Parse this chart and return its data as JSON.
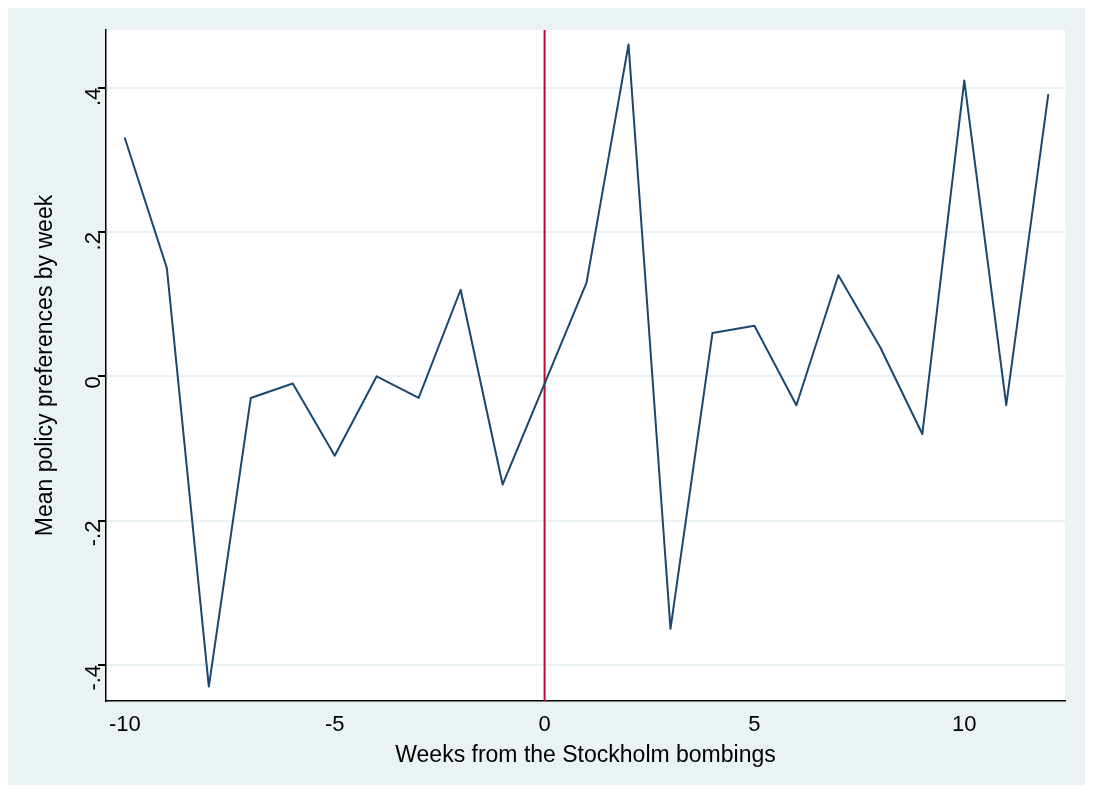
{
  "chart_data": {
    "type": "line",
    "xlabel": "Weeks from the Stockholm bombings",
    "ylabel": "Mean policy preferences by week",
    "x": [
      -10,
      -9,
      -8,
      -7,
      -6,
      -5,
      -4,
      -3,
      -2,
      -1,
      0,
      1,
      2,
      3,
      4,
      5,
      6,
      7,
      8,
      9,
      10,
      11,
      12
    ],
    "series": [
      {
        "color": "#1a476f",
        "values": [
          0.33,
          0.15,
          -0.43,
          -0.03,
          -0.01,
          -0.11,
          0.0,
          -0.03,
          0.12,
          -0.15,
          -0.01,
          0.13,
          0.46,
          -0.35,
          0.06,
          0.07,
          -0.04,
          0.14,
          0.04,
          -0.08,
          0.41,
          -0.04,
          0.39
        ]
      }
    ],
    "xlim": [
      -10.45,
      12.4
    ],
    "xticks": [
      -10,
      -5,
      0,
      5,
      10
    ],
    "ylim": [
      -0.45,
      0.48
    ],
    "yticks": [
      {
        "value": -0.4,
        "label": "-.4"
      },
      {
        "value": -0.2,
        "label": "-.2"
      },
      0,
      {
        "value": 0.2,
        "label": ".2"
      },
      {
        "value": 0.4,
        "label": ".4"
      }
    ],
    "grid": "y",
    "line_style": "solid",
    "legend": false,
    "ref_lines": [
      {
        "axis": "x",
        "value": 0,
        "color": "#c10534"
      }
    ]
  }
}
